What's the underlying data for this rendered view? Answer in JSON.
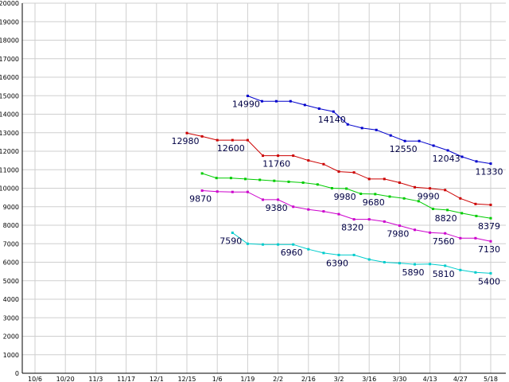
{
  "chart_data": {
    "type": "line",
    "grid": true,
    "ylim": [
      0,
      20000
    ],
    "yticks": [
      "0",
      "1000",
      "2000",
      "3000",
      "4000",
      "5000",
      "6000",
      "7000",
      "8000",
      "9000",
      "10000",
      "11000",
      "12000",
      "13000",
      "14000",
      "15000",
      "16000",
      "17000",
      "18000",
      "19000",
      "20000"
    ],
    "xticks": [
      "10/6",
      "10/20",
      "11/3",
      "11/17",
      "12/1",
      "12/15",
      "1/6",
      "1/19",
      "2/2",
      "2/16",
      "3/2",
      "3/16",
      "3/30",
      "4/13",
      "4/27",
      "5/18"
    ],
    "series": [
      {
        "color": "#0000cc",
        "start_tick": 7,
        "values": [
          14990,
          14700,
          14700,
          14700,
          14500,
          14300,
          14140,
          13450,
          13250,
          13150,
          12850,
          12550,
          12550,
          12300,
          12043,
          11700,
          11450,
          11330
        ],
        "labels": [
          {
            "i": 0,
            "text": "14990"
          },
          {
            "i": 6,
            "text": "14140"
          },
          {
            "i": 11,
            "text": "12550"
          },
          {
            "i": 14,
            "text": "12043"
          },
          {
            "i": 17,
            "text": "11330"
          }
        ]
      },
      {
        "color": "#cc0000",
        "start_tick": 5,
        "values": [
          12980,
          12800,
          12600,
          12600,
          12600,
          11760,
          11760,
          11760,
          11500,
          11300,
          10900,
          10850,
          10500,
          10500,
          10300,
          10050,
          9990,
          9900,
          9450,
          9150,
          9100
        ],
        "labels": [
          {
            "i": 0,
            "text": "12980"
          },
          {
            "i": 3,
            "text": "12600"
          },
          {
            "i": 6,
            "text": "11760"
          },
          {
            "i": 16,
            "text": "9990"
          }
        ]
      },
      {
        "color": "#00cc00",
        "start_tick": 5.5,
        "values": [
          10800,
          10550,
          10550,
          10500,
          10450,
          10400,
          10350,
          10300,
          10200,
          10000,
          9980,
          9700,
          9680,
          9550,
          9450,
          9300,
          8880,
          8820,
          8650,
          8500,
          8379
        ],
        "labels": [
          {
            "i": 10,
            "text": "9980"
          },
          {
            "i": 12,
            "text": "9680"
          },
          {
            "i": 17,
            "text": "8820"
          },
          {
            "i": 20,
            "text": "8379"
          }
        ]
      },
      {
        "color": "#cc00cc",
        "start_tick": 5.5,
        "values": [
          9870,
          9820,
          9800,
          9800,
          9380,
          9380,
          9000,
          8850,
          8750,
          8600,
          8320,
          8320,
          8200,
          7980,
          7750,
          7600,
          7560,
          7300,
          7300,
          7130
        ],
        "labels": [
          {
            "i": 0,
            "text": "9870"
          },
          {
            "i": 5,
            "text": "9380"
          },
          {
            "i": 10,
            "text": "8320"
          },
          {
            "i": 13,
            "text": "7980"
          },
          {
            "i": 16,
            "text": "7560"
          },
          {
            "i": 19,
            "text": "7130"
          }
        ]
      },
      {
        "color": "#00cccc",
        "start_tick": 6.5,
        "values": [
          7590,
          7000,
          6960,
          6960,
          6960,
          6700,
          6500,
          6390,
          6390,
          6150,
          6000,
          5950,
          5890,
          5900,
          5810,
          5580,
          5450,
          5400
        ],
        "labels": [
          {
            "i": 0,
            "text": "7590"
          },
          {
            "i": 4,
            "text": "6960"
          },
          {
            "i": 7,
            "text": "6390"
          },
          {
            "i": 12,
            "text": "5890"
          },
          {
            "i": 14,
            "text": "5810"
          },
          {
            "i": 17,
            "text": "5400"
          }
        ]
      }
    ]
  }
}
